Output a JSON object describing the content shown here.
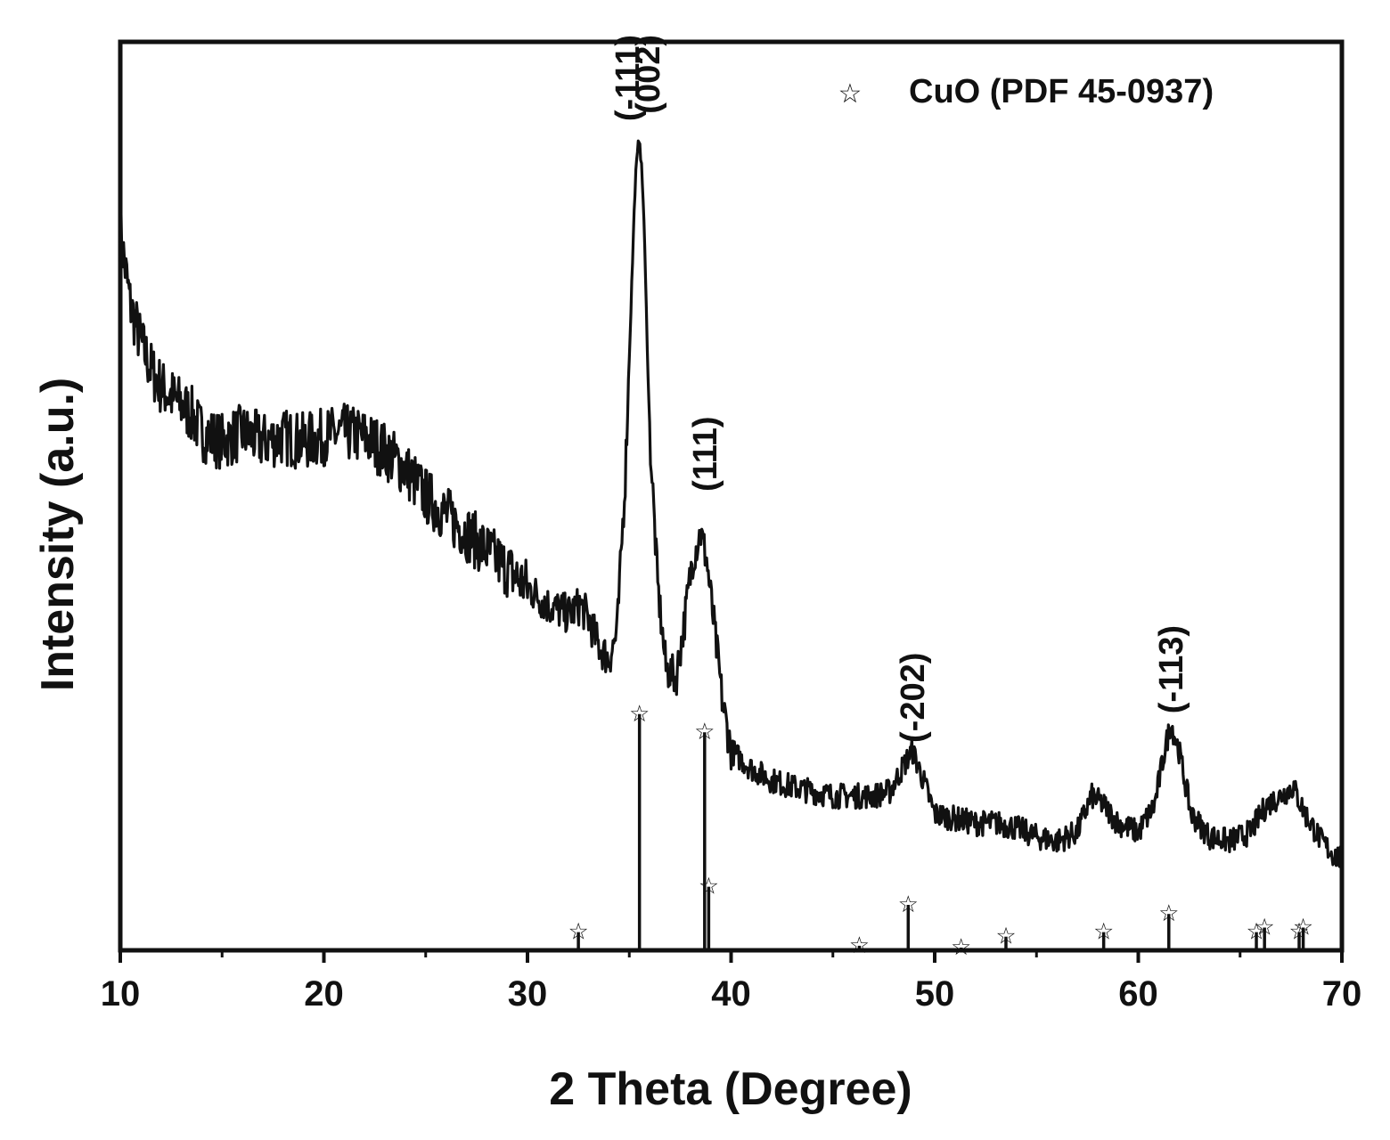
{
  "chart_data": {
    "type": "line",
    "title": "",
    "xlabel": "2 Theta (Degree)",
    "ylabel": "Intensity (a.u.)",
    "xlim": [
      10,
      70
    ],
    "ylim": [
      0,
      100
    ],
    "x_ticks": [
      10,
      20,
      30,
      40,
      50,
      60,
      70
    ],
    "x_tick_labels": [
      "10",
      "20",
      "30",
      "40",
      "50",
      "60",
      "70"
    ],
    "y_tick_labels_shown": false,
    "grid": false,
    "legend": {
      "position": "top-right",
      "entries": [
        {
          "symbol": "star-icon",
          "label": "CuO (PDF 45-0937)"
        }
      ]
    },
    "series": [
      {
        "x": [
          10,
          10.5,
          11,
          11.5,
          12,
          12.5,
          13,
          13.5,
          14,
          15,
          16,
          17,
          18,
          19,
          20,
          21,
          22,
          23,
          24,
          25,
          26,
          27,
          28,
          29,
          30,
          31,
          32,
          32.6,
          33,
          33.5,
          34,
          34.4,
          34.8,
          35.1,
          35.3,
          35.5,
          35.7,
          36,
          36.4,
          36.8,
          37.3,
          37.7,
          38.1,
          38.5,
          38.8,
          39.2,
          39.6,
          40,
          41,
          42,
          43,
          44,
          45,
          46,
          47,
          47.8,
          48.4,
          48.9,
          49.4,
          50,
          51,
          52,
          53,
          54,
          55,
          56,
          57,
          57.7,
          58.3,
          59,
          60,
          60.8,
          61.3,
          61.6,
          62,
          62.6,
          63.5,
          64.5,
          65.5,
          66.3,
          67,
          67.6,
          68.2,
          69,
          69.6,
          70
        ],
        "values": [
          79,
          71,
          67,
          64,
          62,
          61,
          60,
          59,
          57,
          56,
          57,
          56,
          56.5,
          56,
          56.5,
          57,
          56.5,
          55,
          53,
          50,
          48,
          46,
          44,
          42,
          40,
          38,
          37,
          38,
          36.5,
          33.5,
          32,
          35,
          52,
          72,
          85,
          90,
          82,
          57,
          40,
          31,
          30,
          36,
          43,
          46,
          43,
          35,
          27,
          22,
          20,
          18.7,
          18,
          17.5,
          17,
          17,
          17,
          17.5,
          20,
          22,
          19,
          15,
          14.5,
          14,
          14,
          13.5,
          12.5,
          12,
          13,
          17,
          16,
          14,
          13,
          16,
          22,
          25,
          22,
          15,
          12.5,
          12,
          13,
          16,
          17,
          18,
          15,
          12,
          10.5,
          10
        ]
      }
    ],
    "reference_pattern": {
      "name": "CuO (PDF 45-0937)",
      "x": [
        32.5,
        35.5,
        38.7,
        38.9,
        46.3,
        48.7,
        51.3,
        53.5,
        58.3,
        61.5,
        65.8,
        66.2,
        67.9,
        68.1
      ],
      "values": [
        2,
        26,
        24,
        7,
        0.5,
        5,
        0.3,
        1.5,
        2,
        4,
        2,
        2.5,
        2,
        2.5
      ]
    },
    "annotations": [
      {
        "text": "(-111)",
        "x": 34.9,
        "y": 100
      },
      {
        "text": "(002)",
        "x": 35.9,
        "y": 100
      },
      {
        "text": "(111)",
        "x": 38.7,
        "y": 58
      },
      {
        "text": "(-202)",
        "x": 48.9,
        "y": 32
      },
      {
        "text": "(-113)",
        "x": 61.6,
        "y": 35
      }
    ]
  }
}
